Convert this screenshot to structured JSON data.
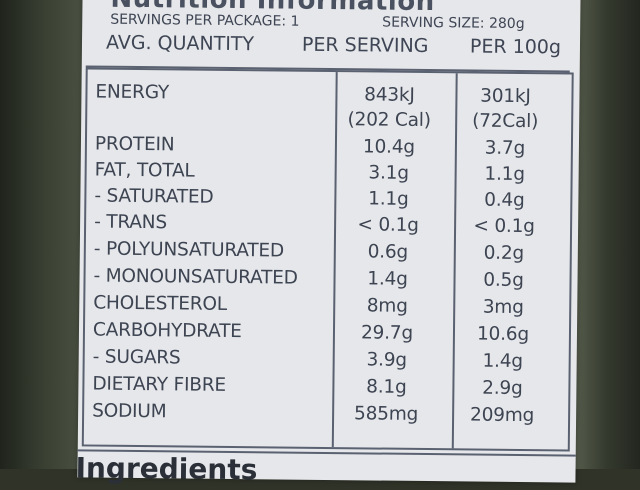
{
  "label": {
    "heading": "Nutrition Information",
    "servings_per_package": "SERVINGS PER PACKAGE: 1",
    "serving_size": "SERVING SIZE: 280g",
    "col_avg_quantity": "AVG. QUANTITY",
    "col_per_serving": "PER SERVING",
    "col_per_100g": "PER 100g",
    "energy": {
      "name": "ENERGY",
      "per_serving_kj": "843kJ",
      "per_serving_cal": "(202 Cal)",
      "per_100g_kj": "301kJ",
      "per_100g_cal": "(72Cal)"
    },
    "rows": [
      {
        "name": "PROTEIN",
        "per_serving": "10.4g",
        "per_100g": "3.7g"
      },
      {
        "name": "FAT, TOTAL",
        "per_serving": "3.1g",
        "per_100g": "1.1g"
      },
      {
        "name": "- SATURATED",
        "per_serving": "1.1g",
        "per_100g": "0.4g"
      },
      {
        "name": "- TRANS",
        "per_serving": "< 0.1g",
        "per_100g": "< 0.1g"
      },
      {
        "name": "- POLYUNSATURATED",
        "per_serving": "0.6g",
        "per_100g": "0.2g"
      },
      {
        "name": "- MONOUNSATURATED",
        "per_serving": "1.4g",
        "per_100g": "0.5g"
      },
      {
        "name": "CHOLESTEROL",
        "per_serving": "8mg",
        "per_100g": "3mg"
      },
      {
        "name": "CARBOHYDRATE",
        "per_serving": "29.7g",
        "per_100g": "10.6g"
      },
      {
        "name": "- SUGARS",
        "per_serving": "3.9g",
        "per_100g": "1.4g"
      },
      {
        "name": "DIETARY FIBRE",
        "per_serving": "8.1g",
        "per_100g": "2.9g"
      },
      {
        "name": "SODIUM",
        "per_serving": "585mg",
        "per_100g": "209mg"
      }
    ],
    "ingredients_heading": "Ingredients"
  }
}
